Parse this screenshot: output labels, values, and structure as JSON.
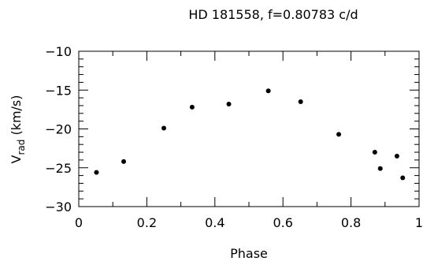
{
  "chart_data": {
    "type": "scatter",
    "title": "HD 181558, f=0.80783 c/d",
    "xlabel": "Phase",
    "ylabel": {
      "main": "V",
      "sub": "rad",
      "unit": " (km/s)"
    },
    "xlim": [
      0,
      1
    ],
    "ylim": [
      -30,
      -10
    ],
    "y_reversed": true,
    "x_ticks": [
      0,
      0.2,
      0.4,
      0.6,
      0.8,
      1
    ],
    "x_tick_labels": [
      "0",
      "0.2",
      "0.4",
      "0.6",
      "0.8",
      "1"
    ],
    "y_ticks": [
      -10,
      -15,
      -20,
      -25,
      -30
    ],
    "y_tick_labels": [
      "−10",
      "−15",
      "−20",
      "−25",
      "−30"
    ],
    "grid": false,
    "series": [
      {
        "marker_color": "#000000",
        "x": [
          0.052,
          0.132,
          0.25,
          0.333,
          0.441,
          0.557,
          0.652,
          0.764,
          0.87,
          0.886,
          0.935,
          0.952
        ],
        "y": [
          -25.6,
          -24.2,
          -19.9,
          -17.2,
          -16.8,
          -15.1,
          -16.5,
          -20.7,
          -23.0,
          -25.1,
          -23.5,
          -26.3
        ]
      }
    ]
  }
}
